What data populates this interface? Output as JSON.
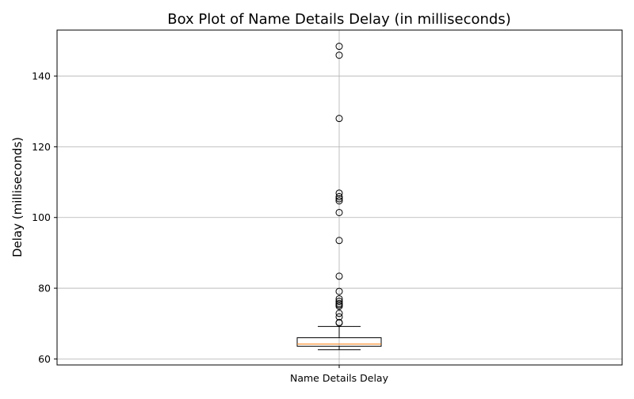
{
  "chart_data": {
    "type": "box",
    "title": "Box Plot of Name Details Delay (in milliseconds)",
    "xlabel": "",
    "ylabel": "Delay (milliseconds)",
    "categories": [
      "Name Details Delay"
    ],
    "ylim": [
      58.3,
      153.0
    ],
    "yticks": [
      60,
      80,
      100,
      120,
      140
    ],
    "ytick_labels": [
      "60",
      "80",
      "100",
      "120",
      "140"
    ],
    "grid": true,
    "box": {
      "whisker_low": 62.6,
      "q1": 63.6,
      "median": 64.2,
      "q3": 66.0,
      "whisker_high": 69.2
    },
    "outliers": [
      70.2,
      70.3,
      71.9,
      72.9,
      74.9,
      75.3,
      75.7,
      76.3,
      77.0,
      79.1,
      83.4,
      93.5,
      101.4,
      104.7,
      105.3,
      105.9,
      106.9,
      128.0,
      145.9,
      148.4
    ],
    "colors": {
      "box": "#000000",
      "median": "#ff7f0e",
      "grid": "#b0b0b0",
      "outlier_edge": "#000000"
    }
  }
}
